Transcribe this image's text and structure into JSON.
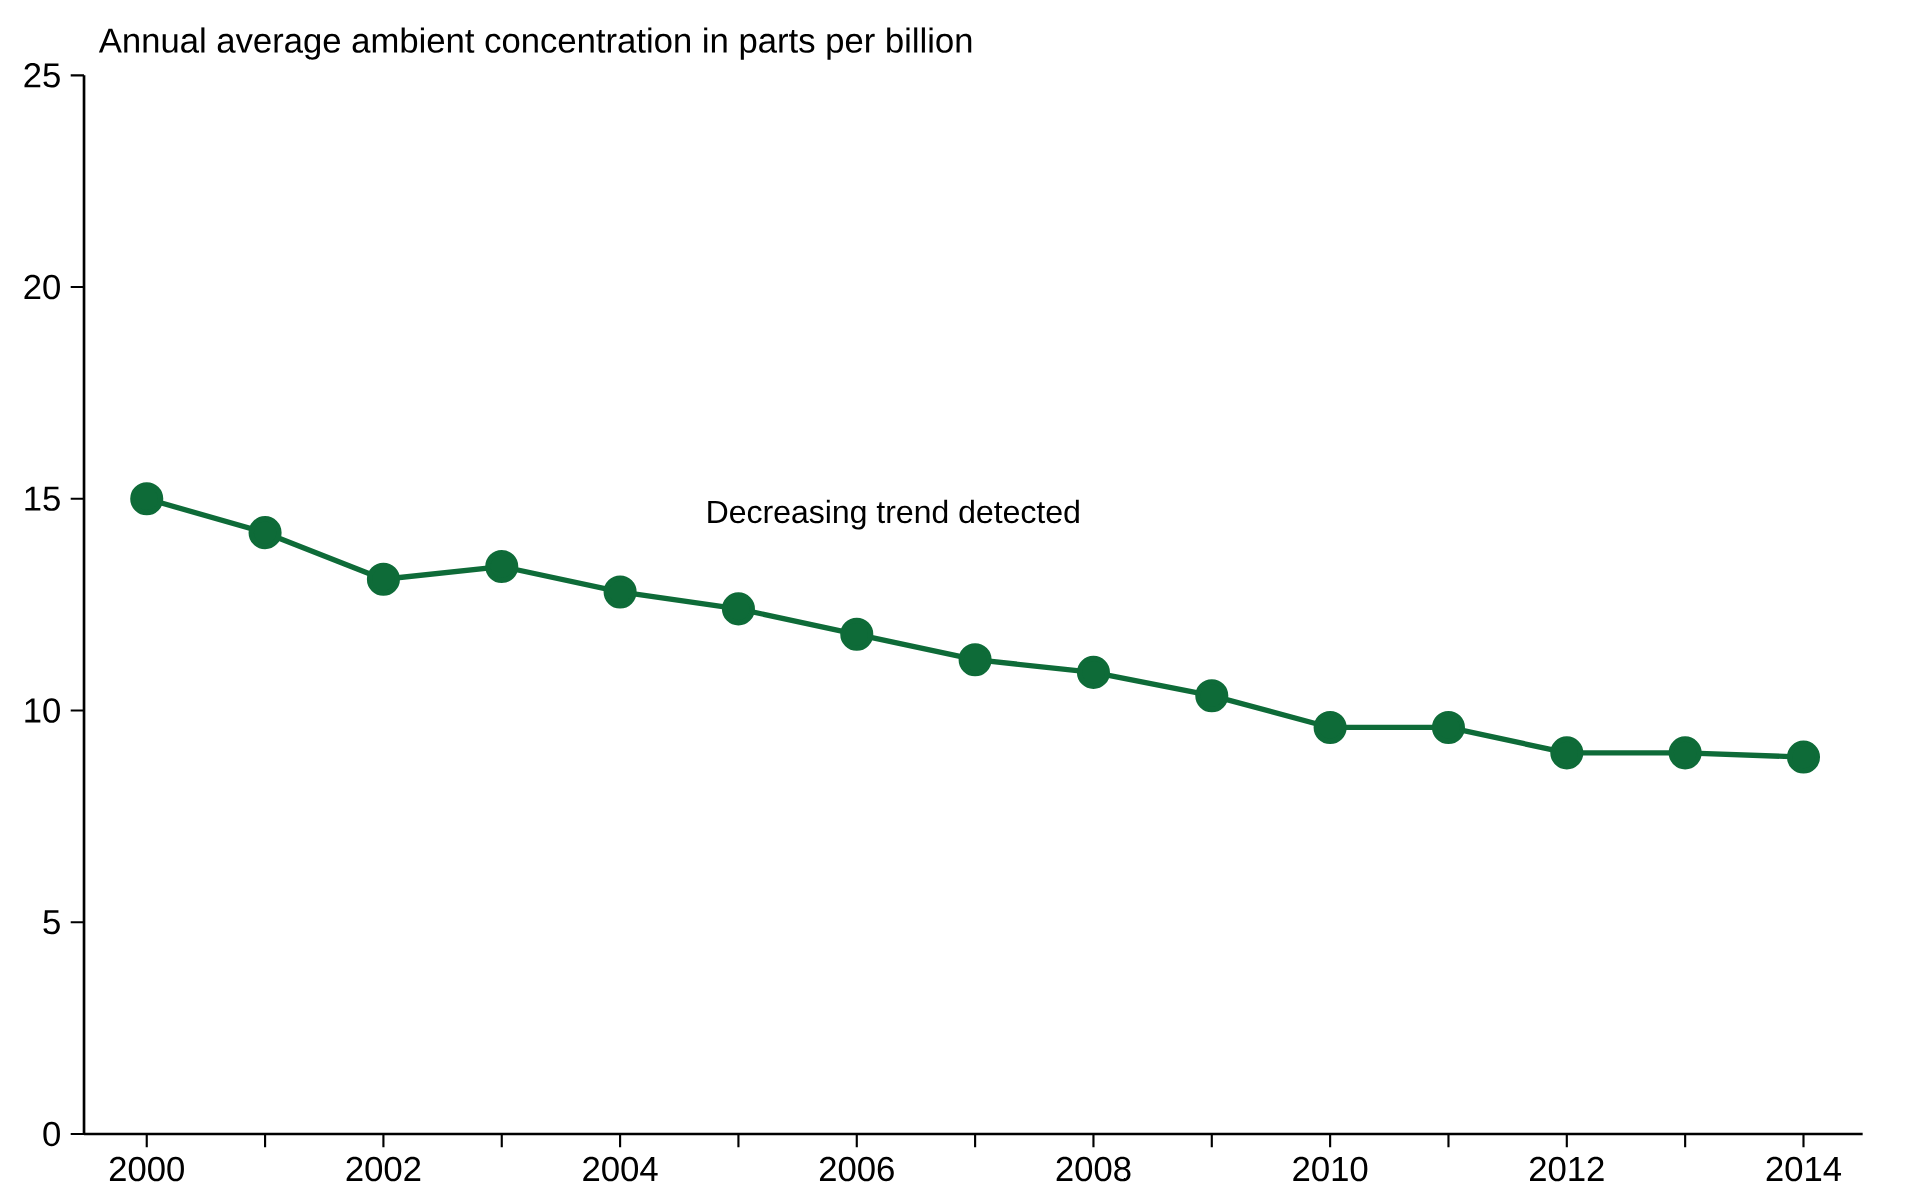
{
  "chart_data": {
    "type": "line",
    "title": "Annual average ambient concentration in parts per billion",
    "annotations": [
      "Decreasing trend detected"
    ],
    "x": [
      2000,
      2001,
      2002,
      2003,
      2004,
      2005,
      2006,
      2007,
      2008,
      2009,
      2010,
      2011,
      2012,
      2013,
      2014
    ],
    "series": [
      {
        "color": "#0e6b38",
        "values": [
          15.0,
          14.2,
          13.1,
          13.4,
          12.8,
          12.4,
          11.8,
          11.2,
          10.9,
          10.35,
          9.6,
          9.6,
          9.0,
          9.0,
          8.9
        ]
      }
    ],
    "xlim": [
      1999.47,
      2014.5
    ],
    "xticks": [
      2000,
      {
        "value": 2001,
        "label": null
      },
      2002,
      {
        "value": 2003,
        "label": null
      },
      2004,
      {
        "value": 2005,
        "label": null
      },
      2006,
      {
        "value": 2007,
        "label": null
      },
      2008,
      {
        "value": 2009,
        "label": null
      },
      2010,
      {
        "value": 2011,
        "label": null
      },
      2012,
      {
        "value": 2013,
        "label": null
      },
      2014
    ],
    "ylim": [
      0,
      25
    ],
    "yticks": [
      0,
      5,
      10,
      15,
      20,
      25
    ],
    "grid": false,
    "marker": "circle",
    "line_style": "solid"
  }
}
